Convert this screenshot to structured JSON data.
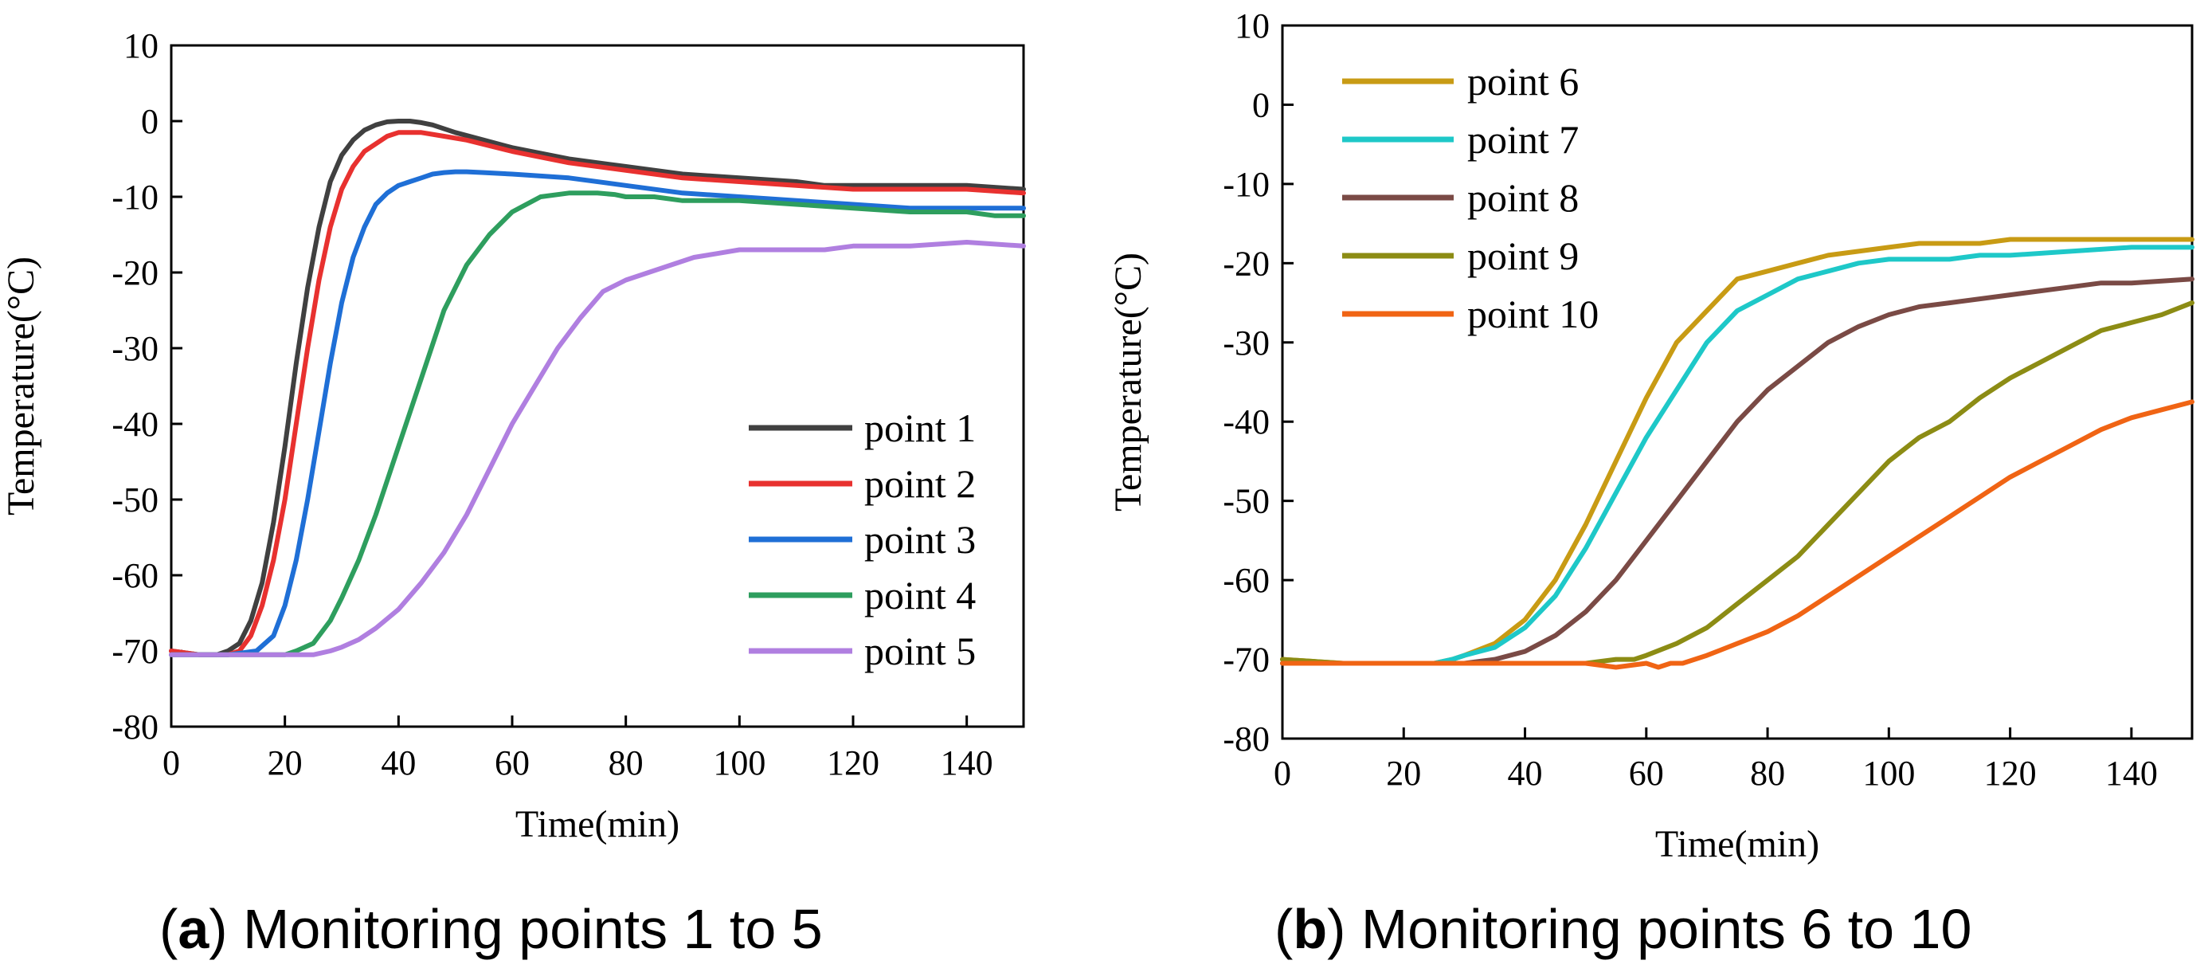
{
  "chart_data": [
    {
      "type": "line",
      "panel_letter": "a",
      "caption": " Monitoring points 1 to 5",
      "xlabel": "Time(min)",
      "ylabel": "Temperature(°C)",
      "xlim": [
        0,
        150
      ],
      "ylim": [
        -80,
        10
      ],
      "xticks": [
        "0",
        "20",
        "40",
        "60",
        "80",
        "100",
        "120",
        "140"
      ],
      "yticks": [
        "10",
        "0",
        "-10",
        "-20",
        "-30",
        "-40",
        "-50",
        "-60",
        "-70",
        "-80"
      ],
      "legend_position": "lower-right",
      "series": [
        {
          "name": "point 1",
          "color": "#404040",
          "x": [
            0,
            5,
            8,
            10,
            12,
            14,
            16,
            18,
            20,
            22,
            24,
            26,
            28,
            30,
            32,
            34,
            36,
            38,
            40,
            42,
            44,
            46,
            50,
            55,
            60,
            70,
            80,
            90,
            100,
            110,
            115,
            120,
            130,
            140,
            150
          ],
          "y": [
            -70,
            -70.5,
            -70.5,
            -70,
            -69,
            -66,
            -61,
            -53,
            -43,
            -32,
            -22,
            -14,
            -8,
            -4.5,
            -2.5,
            -1.2,
            -0.5,
            -0.1,
            0,
            0,
            -0.2,
            -0.5,
            -1.5,
            -2.5,
            -3.5,
            -5,
            -6,
            -7,
            -7.5,
            -8,
            -8.5,
            -8.5,
            -8.5,
            -8.5,
            -9
          ]
        },
        {
          "name": "point 2",
          "color": "#e8312f",
          "x": [
            0,
            5,
            10,
            12,
            14,
            16,
            18,
            20,
            22,
            24,
            26,
            28,
            30,
            32,
            34,
            36,
            38,
            40,
            42,
            44,
            48,
            52,
            60,
            70,
            80,
            90,
            100,
            110,
            120,
            130,
            140,
            150
          ],
          "y": [
            -70,
            -70.5,
            -70.5,
            -70,
            -68,
            -64,
            -58,
            -50,
            -40,
            -30,
            -21,
            -14,
            -9,
            -6,
            -4,
            -3,
            -2,
            -1.5,
            -1.5,
            -1.5,
            -2,
            -2.5,
            -4,
            -5.5,
            -6.5,
            -7.5,
            -8,
            -8.5,
            -9,
            -9,
            -9,
            -9.5
          ]
        },
        {
          "name": "point 3",
          "color": "#1f6fd6",
          "x": [
            0,
            5,
            10,
            15,
            18,
            20,
            22,
            24,
            26,
            28,
            30,
            32,
            34,
            36,
            38,
            40,
            42,
            44,
            46,
            48,
            50,
            52,
            55,
            60,
            70,
            80,
            90,
            100,
            110,
            120,
            130,
            140,
            150
          ],
          "y": [
            -70.5,
            -70.5,
            -70.5,
            -70,
            -68,
            -64,
            -58,
            -50,
            -41,
            -32,
            -24,
            -18,
            -14,
            -11,
            -9.5,
            -8.5,
            -8,
            -7.5,
            -7,
            -6.8,
            -6.7,
            -6.7,
            -6.8,
            -7,
            -7.5,
            -8.5,
            -9.5,
            -10,
            -10.5,
            -11,
            -11.5,
            -11.5,
            -11.5
          ]
        },
        {
          "name": "point 4",
          "color": "#2e9e5e",
          "x": [
            0,
            5,
            10,
            15,
            20,
            22,
            25,
            28,
            30,
            33,
            36,
            40,
            44,
            48,
            52,
            56,
            60,
            65,
            70,
            75,
            78,
            80,
            85,
            90,
            100,
            110,
            120,
            130,
            140,
            145,
            150
          ],
          "y": [
            -70.5,
            -70.5,
            -70.5,
            -70.5,
            -70.5,
            -70,
            -69,
            -66,
            -63,
            -58,
            -52,
            -43,
            -34,
            -25,
            -19,
            -15,
            -12,
            -10,
            -9.5,
            -9.5,
            -9.7,
            -10,
            -10,
            -10.5,
            -10.5,
            -11,
            -11.5,
            -12,
            -12,
            -12.5,
            -12.5
          ]
        },
        {
          "name": "point 5",
          "color": "#b07fe0",
          "x": [
            0,
            5,
            10,
            15,
            20,
            25,
            28,
            30,
            33,
            36,
            40,
            44,
            48,
            52,
            56,
            60,
            64,
            68,
            72,
            76,
            80,
            84,
            88,
            92,
            96,
            100,
            104,
            110,
            115,
            120,
            130,
            140,
            150
          ],
          "y": [
            -70.5,
            -70.5,
            -70.5,
            -70.5,
            -70.5,
            -70.5,
            -70,
            -69.5,
            -68.5,
            -67,
            -64.5,
            -61,
            -57,
            -52,
            -46,
            -40,
            -35,
            -30,
            -26,
            -22.5,
            -21,
            -20,
            -19,
            -18,
            -17.5,
            -17,
            -17,
            -17,
            -17,
            -16.5,
            -16.5,
            -16,
            -16.5
          ]
        }
      ]
    },
    {
      "type": "line",
      "panel_letter": "b",
      "caption": " Monitoring points 6 to 10",
      "xlabel": "Time(min)",
      "ylabel": "Temperature(°C)",
      "xlim": [
        0,
        150
      ],
      "ylim": [
        -80,
        10
      ],
      "xticks": [
        "0",
        "20",
        "40",
        "60",
        "80",
        "100",
        "120",
        "140"
      ],
      "yticks": [
        "10",
        "0",
        "-10",
        "-20",
        "-30",
        "-40",
        "-50",
        "-60",
        "-70",
        "-80"
      ],
      "legend_position": "top-left",
      "series": [
        {
          "name": "point 6",
          "color": "#c89b14",
          "x": [
            0,
            10,
            20,
            25,
            28,
            30,
            35,
            40,
            45,
            50,
            55,
            60,
            65,
            70,
            75,
            80,
            85,
            90,
            95,
            100,
            105,
            110,
            115,
            120,
            130,
            140,
            150
          ],
          "y": [
            -70,
            -70.5,
            -70.5,
            -70.5,
            -70,
            -69.5,
            -68,
            -65,
            -60,
            -53,
            -45,
            -37,
            -30,
            -26,
            -22,
            -21,
            -20,
            -19,
            -18.5,
            -18,
            -17.5,
            -17.5,
            -17.5,
            -17,
            -17,
            -17,
            -17
          ]
        },
        {
          "name": "point 7",
          "color": "#1ec8c8",
          "x": [
            0,
            10,
            20,
            25,
            28,
            30,
            35,
            40,
            45,
            50,
            55,
            60,
            65,
            70,
            75,
            80,
            85,
            90,
            95,
            100,
            105,
            110,
            115,
            120,
            130,
            140,
            150
          ],
          "y": [
            -70.5,
            -70.5,
            -70.5,
            -70.5,
            -70,
            -69.5,
            -68.5,
            -66,
            -62,
            -56,
            -49,
            -42,
            -36,
            -30,
            -26,
            -24,
            -22,
            -21,
            -20,
            -19.5,
            -19.5,
            -19.5,
            -19,
            -19,
            -18.5,
            -18,
            -18
          ]
        },
        {
          "name": "point 8",
          "color": "#7a4a45",
          "x": [
            0,
            10,
            20,
            30,
            35,
            40,
            45,
            50,
            55,
            60,
            65,
            70,
            75,
            80,
            85,
            90,
            95,
            100,
            105,
            110,
            115,
            120,
            125,
            130,
            135,
            140,
            150
          ],
          "y": [
            -70.5,
            -70.5,
            -70.5,
            -70.5,
            -70,
            -69,
            -67,
            -64,
            -60,
            -55,
            -50,
            -45,
            -40,
            -36,
            -33,
            -30,
            -28,
            -26.5,
            -25.5,
            -25,
            -24.5,
            -24,
            -23.5,
            -23,
            -22.5,
            -22.5,
            -22
          ]
        },
        {
          "name": "point 9",
          "color": "#8c8c14",
          "x": [
            0,
            10,
            20,
            30,
            40,
            45,
            50,
            55,
            58,
            60,
            65,
            70,
            75,
            80,
            85,
            90,
            95,
            100,
            105,
            110,
            115,
            120,
            125,
            130,
            135,
            140,
            145,
            150
          ],
          "y": [
            -70,
            -70.5,
            -70.5,
            -70.5,
            -70.5,
            -70.5,
            -70.5,
            -70,
            -70,
            -69.5,
            -68,
            -66,
            -63,
            -60,
            -57,
            -53,
            -49,
            -45,
            -42,
            -40,
            -37,
            -34.5,
            -32.5,
            -30.5,
            -28.5,
            -27.5,
            -26.5,
            -25
          ]
        },
        {
          "name": "point 10",
          "color": "#f06414",
          "x": [
            0,
            10,
            20,
            30,
            40,
            45,
            50,
            55,
            60,
            62,
            64,
            66,
            70,
            75,
            80,
            85,
            90,
            95,
            100,
            105,
            110,
            115,
            120,
            125,
            130,
            135,
            140,
            145,
            150
          ],
          "y": [
            -70.5,
            -70.5,
            -70.5,
            -70.5,
            -70.5,
            -70.5,
            -70.5,
            -71,
            -70.5,
            -71,
            -70.5,
            -70.5,
            -69.5,
            -68,
            -66.5,
            -64.5,
            -62,
            -59.5,
            -57,
            -54.5,
            -52,
            -49.5,
            -47,
            -45,
            -43,
            -41,
            -39.5,
            -38.5,
            -37.5
          ]
        }
      ]
    }
  ]
}
